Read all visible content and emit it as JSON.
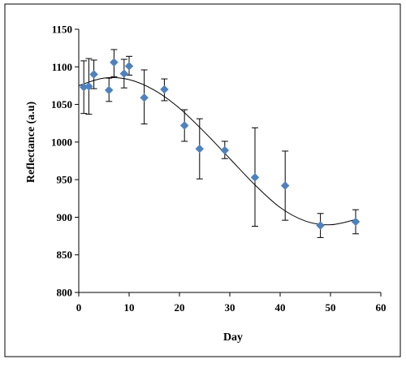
{
  "chart_data": {
    "type": "scatter",
    "title": "",
    "xlabel": "Day",
    "ylabel": "Reflectance (a.u)",
    "xlim": [
      0,
      60
    ],
    "ylim": [
      800,
      1150
    ],
    "xticks": [
      "0",
      "10",
      "20",
      "30",
      "40",
      "50",
      "60"
    ],
    "yticks": [
      "800",
      "850",
      "900",
      "950",
      "1000",
      "1050",
      "1100",
      "1150"
    ],
    "grid": false,
    "legend": "none",
    "marker_color": "#4f81bd",
    "series": [
      {
        "marker": "diamond",
        "x": [
          1,
          2,
          3,
          6,
          7,
          9,
          10,
          13,
          17,
          21,
          24,
          29,
          35,
          41,
          48,
          55
        ],
        "y": [
          1073,
          1074,
          1090,
          1069,
          1106,
          1091,
          1101,
          1059,
          1070,
          1022,
          991,
          989,
          953,
          942,
          889,
          894
        ],
        "error_low": [
          1038,
          1037,
          1071,
          1054,
          1087,
          1072,
          1089,
          1024,
          1055,
          1001,
          951,
          978,
          888,
          896,
          873,
          878
        ],
        "error_high": [
          1108,
          1111,
          1109,
          1085,
          1123,
          1110,
          1114,
          1096,
          1084,
          1043,
          1031,
          1001,
          1019,
          988,
          905,
          910
        ]
      }
    ],
    "trendline": {
      "type": "polynomial",
      "x": [
        0,
        5,
        10,
        15,
        20,
        25,
        30,
        35,
        40,
        45,
        50,
        55
      ],
      "y": [
        1075,
        1085,
        1083,
        1069,
        1045,
        1013,
        978,
        943,
        913,
        895,
        890,
        897
      ]
    }
  }
}
